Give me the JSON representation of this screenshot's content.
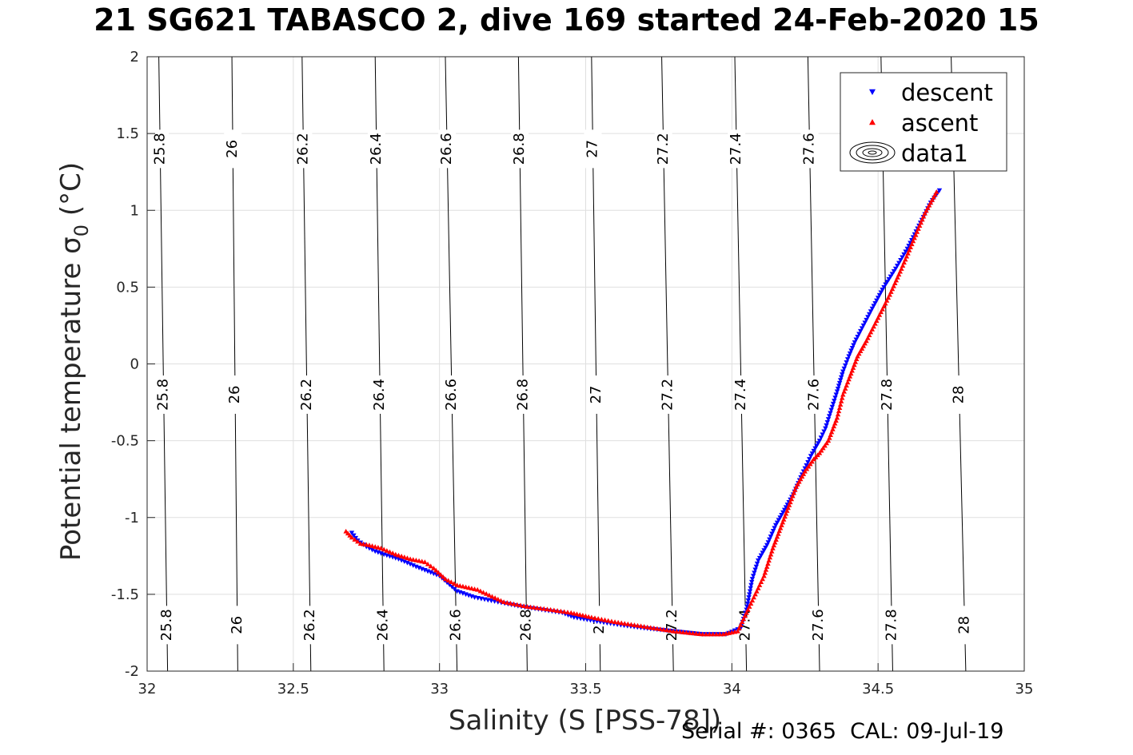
{
  "title": "21 SG621 TABASCO 2, dive 169 started 24-Feb-2020 15",
  "footer": "Serial #: 0365  CAL: 09-Jul-19",
  "chart_data": {
    "type": "scatter",
    "xlabel": "Salinity (S [PSS-78])",
    "ylabel": "Potential temperature σ₀ (°C)",
    "xlim": [
      32,
      35
    ],
    "ylim": [
      -2,
      2
    ],
    "xticks": [
      32,
      32.5,
      33,
      33.5,
      34,
      34.5,
      35
    ],
    "yticks": [
      -2,
      -1.5,
      -1,
      -0.5,
      0,
      0.5,
      1,
      1.5,
      2
    ],
    "grid": true,
    "legend": {
      "placement": "top-right",
      "entries": [
        {
          "label": "descent",
          "marker": "triangle-down",
          "color": "#0000ff"
        },
        {
          "label": "ascent",
          "marker": "triangle-up",
          "color": "#ff0000"
        },
        {
          "label": "data1",
          "marker": "contour",
          "color": "#000000"
        }
      ]
    },
    "contours": {
      "levels": [
        25.8,
        26,
        26.2,
        26.4,
        26.6,
        26.8,
        27,
        27.2,
        27.4,
        27.6,
        27.8,
        28
      ],
      "color": "#000000",
      "top_x": [
        32.04,
        32.29,
        32.53,
        32.78,
        33.02,
        33.27,
        33.52,
        33.76,
        34.01,
        34.26,
        34.51,
        34.75
      ],
      "bottom_x": [
        32.07,
        32.31,
        32.56,
        32.81,
        33.06,
        33.3,
        33.55,
        33.8,
        34.05,
        34.3,
        34.55,
        34.8
      ],
      "label_y": [
        -1.7,
        -0.2,
        1.4
      ]
    },
    "series": [
      {
        "name": "descent",
        "color": "#0000ff",
        "marker": "triangle-down",
        "x": [
          32.7,
          32.72,
          32.75,
          32.78,
          32.81,
          32.86,
          32.92,
          33.0,
          33.06,
          33.12,
          33.2,
          33.28,
          33.35,
          33.42,
          33.46,
          33.55,
          33.62,
          33.7,
          33.8,
          33.9,
          33.98,
          34.03,
          34.05,
          34.07,
          34.09,
          34.12,
          34.15,
          34.18,
          34.21,
          34.24,
          34.27,
          34.3,
          34.32,
          34.34,
          34.36,
          34.38,
          34.4,
          34.42,
          34.45,
          34.48,
          34.52,
          34.56,
          34.6,
          34.64,
          34.68,
          34.71
        ],
        "y": [
          -1.1,
          -1.15,
          -1.19,
          -1.22,
          -1.24,
          -1.27,
          -1.32,
          -1.38,
          -1.48,
          -1.52,
          -1.55,
          -1.58,
          -1.6,
          -1.62,
          -1.65,
          -1.68,
          -1.7,
          -1.72,
          -1.74,
          -1.76,
          -1.76,
          -1.72,
          -1.6,
          -1.4,
          -1.28,
          -1.18,
          -1.05,
          -0.95,
          -0.85,
          -0.72,
          -0.6,
          -0.5,
          -0.42,
          -0.3,
          -0.18,
          -0.05,
          0.05,
          0.14,
          0.25,
          0.36,
          0.5,
          0.62,
          0.75,
          0.9,
          1.05,
          1.13
        ]
      },
      {
        "name": "ascent",
        "color": "#ff0000",
        "marker": "triangle-up",
        "x": [
          32.68,
          32.7,
          32.73,
          32.76,
          32.8,
          32.85,
          32.9,
          32.95,
          32.98,
          33.02,
          33.06,
          33.13,
          33.22,
          33.3,
          33.38,
          33.45,
          33.52,
          33.6,
          33.7,
          33.8,
          33.9,
          33.97,
          34.02,
          34.05,
          34.08,
          34.11,
          34.14,
          34.17,
          34.2,
          34.22,
          34.25,
          34.28,
          34.3,
          34.33,
          34.36,
          34.38,
          34.4,
          34.43,
          34.46,
          34.5,
          34.54,
          34.58,
          34.62,
          34.66,
          34.7
        ],
        "y": [
          -1.09,
          -1.13,
          -1.17,
          -1.18,
          -1.2,
          -1.24,
          -1.27,
          -1.29,
          -1.33,
          -1.4,
          -1.44,
          -1.47,
          -1.55,
          -1.58,
          -1.6,
          -1.62,
          -1.65,
          -1.68,
          -1.71,
          -1.74,
          -1.76,
          -1.76,
          -1.74,
          -1.62,
          -1.5,
          -1.38,
          -1.2,
          -1.05,
          -0.9,
          -0.8,
          -0.7,
          -0.62,
          -0.58,
          -0.5,
          -0.35,
          -0.2,
          -0.1,
          0.05,
          0.15,
          0.3,
          0.45,
          0.62,
          0.8,
          0.98,
          1.12
        ]
      }
    ]
  }
}
